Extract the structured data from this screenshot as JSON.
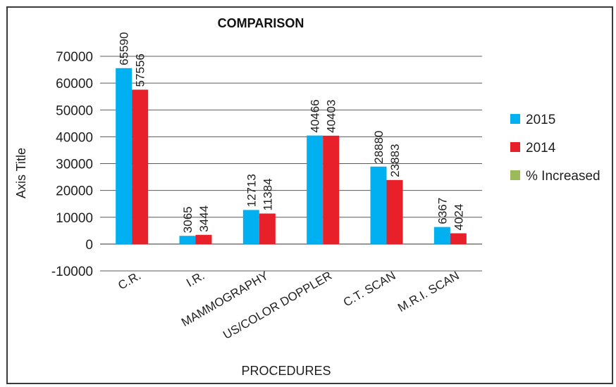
{
  "chart_data": {
    "type": "bar",
    "title": "COMPARISON",
    "xlabel": "PROCEDURES",
    "ylabel": "Axis Title",
    "categories": [
      "C.R.",
      "I.R.",
      "MAMMOGRAPHY",
      "US/COLOR DOPPLER",
      "C.T. SCAN",
      "M.R.I. SCAN"
    ],
    "series": [
      {
        "name": "2015",
        "color": "#00b0f0",
        "values": [
          65590,
          3065,
          12713,
          40466,
          28880,
          6367
        ]
      },
      {
        "name": "2014",
        "color": "#e8202a",
        "values": [
          57556,
          3444,
          11384,
          40403,
          23883,
          4024
        ]
      },
      {
        "name": "% Increased",
        "color": "#9bbb59",
        "values": [
          null,
          null,
          null,
          null,
          null,
          null
        ]
      }
    ],
    "ylim": [
      -10000,
      70000
    ],
    "yticks": [
      -10000,
      0,
      10000,
      20000,
      30000,
      40000,
      50000,
      60000,
      70000
    ],
    "grid": true,
    "legend_position": "right",
    "data_labels": true
  }
}
